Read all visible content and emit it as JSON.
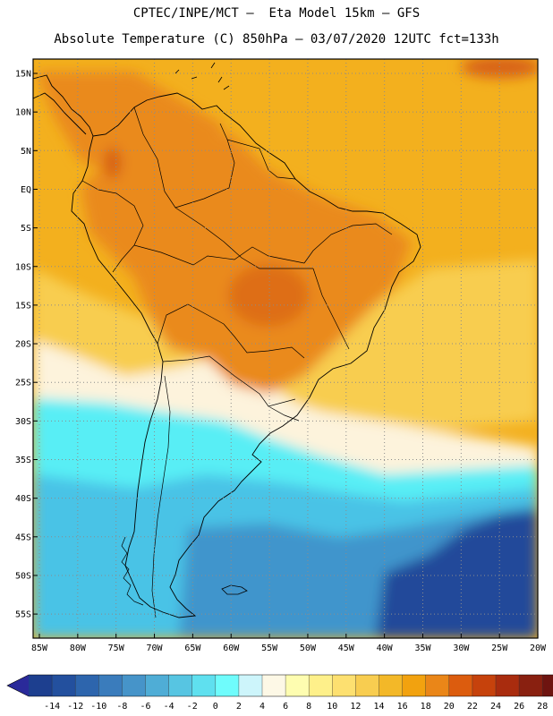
{
  "title_line1": "CPTEC/INPE/MCT –  Eta Model 15km – GFS",
  "title_line2": "Absolute Temperature (C) 850hPa – 03/07/2020 12UTC fct=133h",
  "lat_labels": [
    "15N",
    "10N",
    "5N",
    "EQ",
    "5S",
    "10S",
    "15S",
    "20S",
    "25S",
    "30S",
    "35S",
    "40S",
    "45S",
    "50S",
    "55S"
  ],
  "lon_labels": [
    "85W",
    "80W",
    "75W",
    "70W",
    "65W",
    "60W",
    "55W",
    "50W",
    "45W",
    "40W",
    "35W",
    "30W",
    "25W",
    "20W"
  ],
  "colorbar": {
    "labels": [
      "-14",
      "-12",
      "-10",
      "-8",
      "-6",
      "-4",
      "-2",
      "0",
      "2",
      "4",
      "6",
      "8",
      "10",
      "12",
      "14",
      "16",
      "18",
      "20",
      "22",
      "24",
      "26",
      "28"
    ],
    "colors": [
      "#1d3f8f",
      "#23509e",
      "#2d65ad",
      "#3a7cbc",
      "#4694c9",
      "#4fadd6",
      "#57c5e2",
      "#5fe0ef",
      "#6ffcfc",
      "#cdf5fb",
      "#fdf8e6",
      "#fefdb0",
      "#fef08a",
      "#fde070",
      "#f8cd50",
      "#f3b828",
      "#f2a20f",
      "#ea8618",
      "#dc5c0e",
      "#c6420c",
      "#a92c0e",
      "#892010",
      "#6e1410"
    ]
  },
  "colors": {
    "ocean_north": "#f3b01e",
    "land_warm": "#ea8a1c",
    "hot_spot": "#d86212",
    "cream": "#fdf3dc",
    "cyan": "#58eef5",
    "sky": "#48c3e6",
    "mid_blue": "#3f95cc",
    "deep_blue": "#22489a",
    "coast": "#000000"
  }
}
